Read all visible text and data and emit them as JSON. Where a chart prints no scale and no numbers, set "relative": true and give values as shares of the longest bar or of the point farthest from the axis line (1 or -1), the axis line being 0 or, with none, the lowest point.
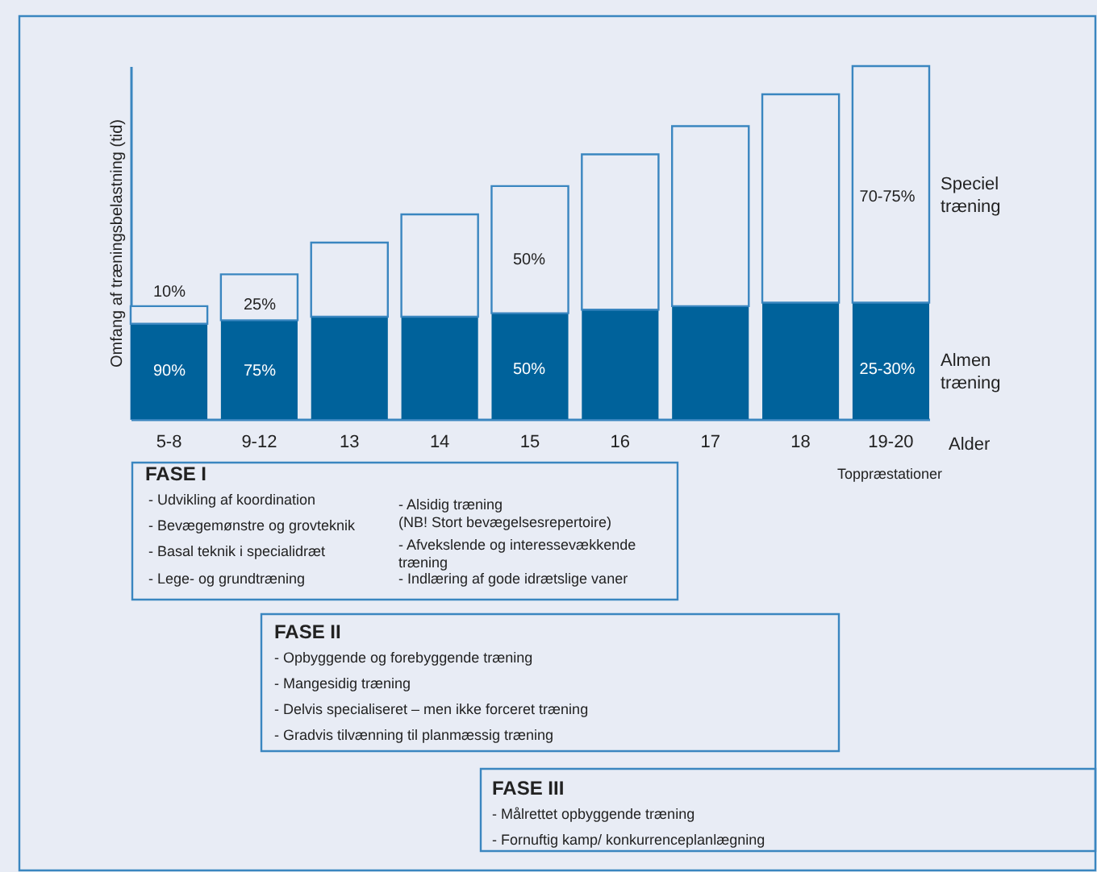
{
  "chart_data": {
    "type": "bar",
    "stacked": true,
    "relative": true,
    "categories": [
      "5-8",
      "9-12",
      "13",
      "14",
      "15",
      "16",
      "17",
      "18",
      "19-20"
    ],
    "xlabel": "Alder",
    "ylabel": "Omfang af træningsbelastning (tid)",
    "series": [
      {
        "name": "Almen træning",
        "color": "#00629b",
        "values": [
          0.27,
          0.28,
          0.29,
          0.29,
          0.3,
          0.31,
          0.32,
          0.33,
          0.33
        ]
      },
      {
        "name": "Speciel træning",
        "color": "#e8ecf5",
        "values": [
          0.05,
          0.13,
          0.21,
          0.29,
          0.36,
          0.44,
          0.51,
          0.59,
          0.67
        ]
      }
    ],
    "annotations": [
      "Toppræstationer",
      "FASE I",
      "- Udvikling af koordination",
      "- Bevægemønstre og grovteknik",
      "- Basal teknik i specialidræt",
      "- Lege- og grundtræning",
      "- Alsidig træning\n  (NB! Stort bevægelsesrepertoire)",
      "- Afvekslende og interessevækkende\n  træning",
      "- Indlæring af gode idrætslige vaner",
      "FASE II",
      "- Opbyggende og forebyggende træning",
      "- Mangesidig træning",
      "- Delvis specialiseret – men ikke forceret træning",
      "- Gradvis tilvænning til planmæssig træning",
      "FASE III",
      "- Målrettet opbyggende træning",
      "- Fornuftig kamp/ konkurrenceplanlægning",
      "90%",
      "10%",
      "75%",
      "25%",
      "50%",
      "50%",
      "25-30%",
      "70-75%"
    ]
  }
}
